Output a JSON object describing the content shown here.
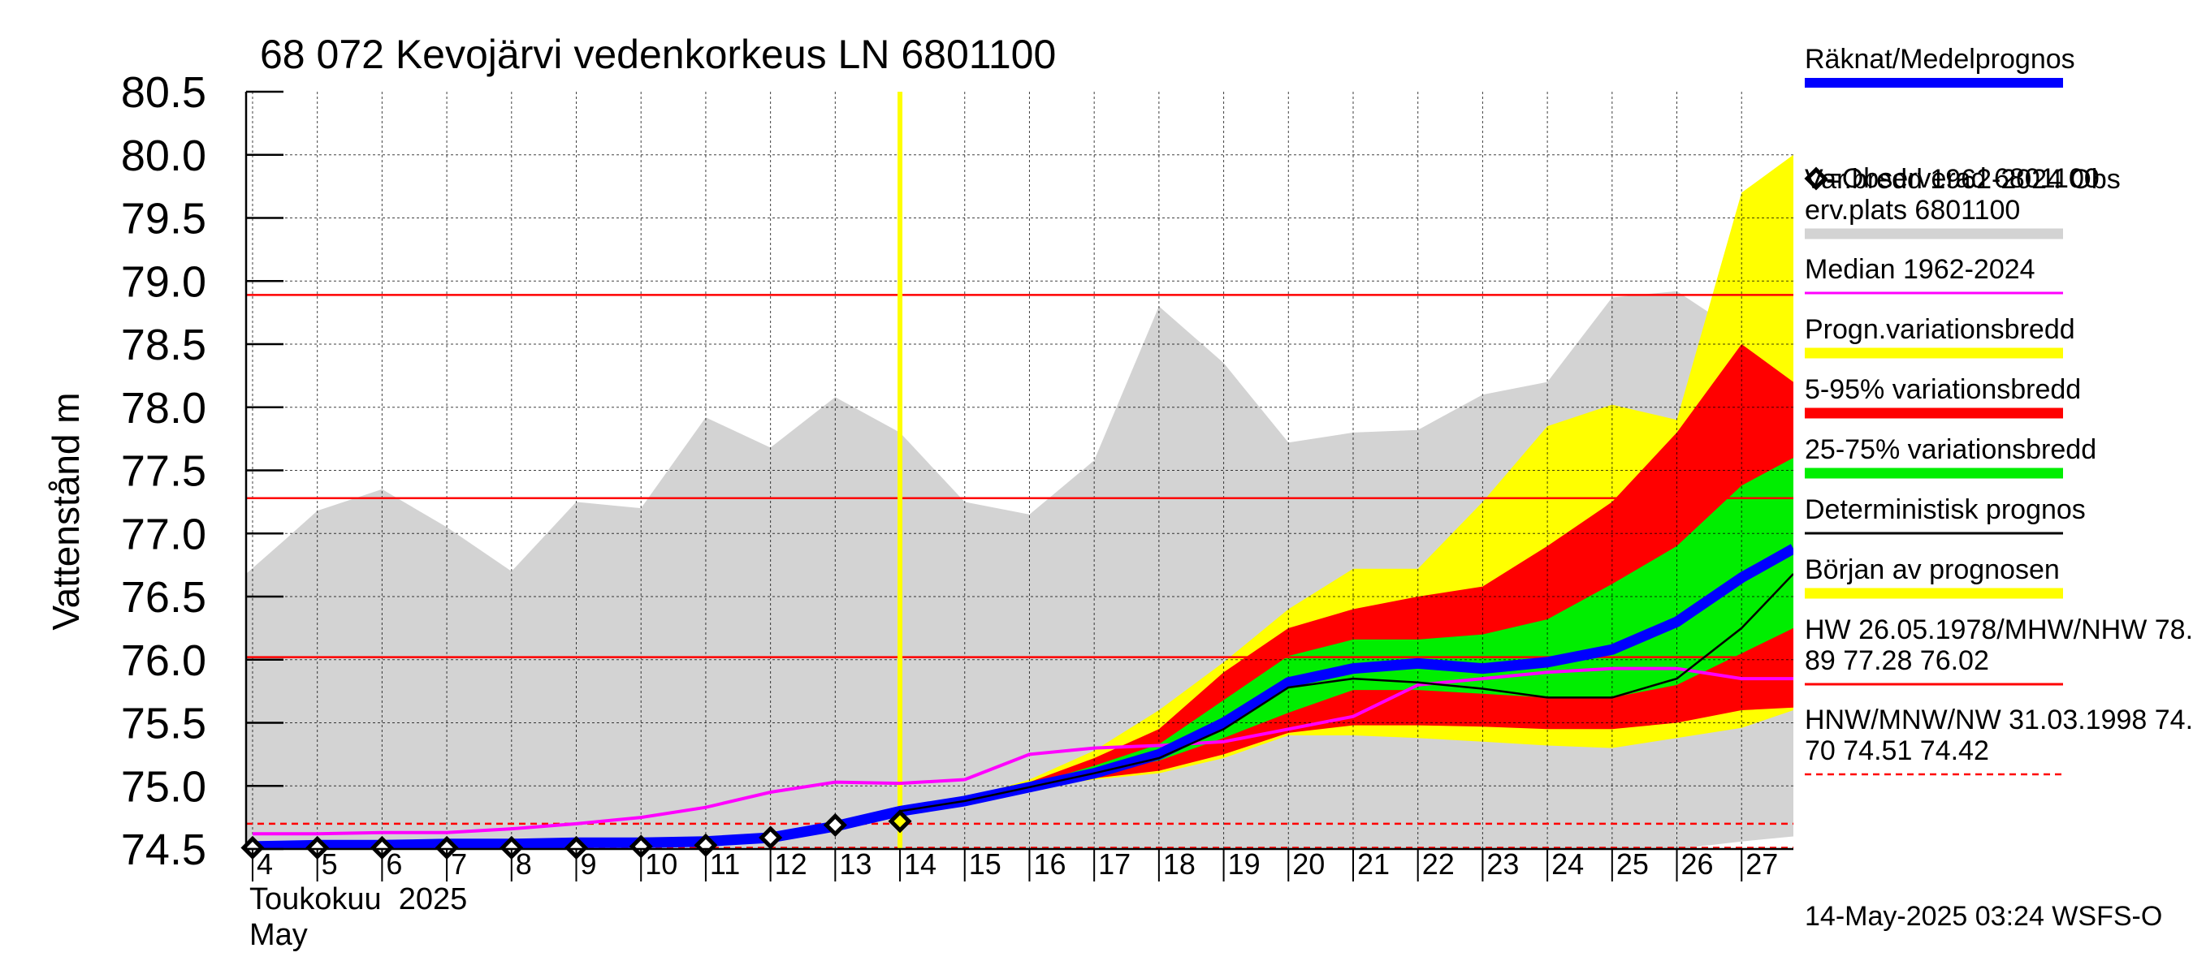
{
  "title": "68 072 Kevojärvi vedenkorkeus LN 6801100",
  "timestamp": "14-May-2025 03:24 WSFS-O",
  "chart_data": {
    "type": "area",
    "title": "68 072 Kevojärvi vedenkorkeus LN 6801100",
    "ylabel": "Vattenstånd m",
    "xlabel_line1": "Toukokuu  2025",
    "xlabel_line2": "May",
    "ylim": [
      74.5,
      80.5
    ],
    "yticks": [
      "74.5",
      "75.0",
      "75.5",
      "76.0",
      "76.5",
      "77.0",
      "77.5",
      "78.0",
      "78.5",
      "79.0",
      "79.5",
      "80.0",
      "80.5"
    ],
    "xlim": [
      3.9,
      27.8
    ],
    "xticks": [
      "4",
      "5",
      "6",
      "7",
      "8",
      "9",
      "10",
      "11",
      "12",
      "13",
      "14",
      "15",
      "16",
      "17",
      "18",
      "19",
      "20",
      "21",
      "22",
      "23",
      "24",
      "25",
      "26",
      "27"
    ],
    "grid": true,
    "forecast_start_day": 14,
    "hlines": [
      {
        "name": "HW 26.05.1978",
        "value": 78.89,
        "color": "#ff0000",
        "style": "solid"
      },
      {
        "name": "MHW",
        "value": 77.28,
        "color": "#ff0000",
        "style": "solid"
      },
      {
        "name": "NHW",
        "value": 76.02,
        "color": "#ff0000",
        "style": "solid"
      },
      {
        "name": "HNW",
        "value": 74.7,
        "color": "#ff0000",
        "style": "dashed"
      },
      {
        "name": "MNW",
        "value": 74.51,
        "color": "#ff0000",
        "style": "dashed"
      }
    ],
    "historical_range": {
      "name": "Var.bredd 1962-2024 Obs erv.plats 6801100",
      "color": "#d3d3d3",
      "x": [
        3.9,
        4.5,
        5,
        6,
        7,
        8,
        9,
        10,
        11,
        12,
        13,
        14,
        15,
        16,
        17,
        18,
        19,
        20,
        21,
        22,
        23,
        24,
        25,
        26,
        27,
        27.8
      ],
      "upper": [
        76.68,
        76.95,
        77.18,
        77.35,
        77.05,
        76.7,
        77.25,
        77.2,
        77.92,
        77.68,
        78.08,
        77.8,
        77.25,
        77.15,
        77.58,
        78.8,
        78.35,
        77.72,
        77.8,
        77.82,
        78.1,
        78.2,
        78.87,
        78.92,
        78.58,
        78.52
      ],
      "lower": [
        74.48,
        74.48,
        74.48,
        74.48,
        74.48,
        74.48,
        74.48,
        74.48,
        74.48,
        74.48,
        74.48,
        74.48,
        74.48,
        74.48,
        74.48,
        74.47,
        74.46,
        74.46,
        74.46,
        74.46,
        74.46,
        74.46,
        74.46,
        74.5,
        74.56,
        74.6
      ]
    },
    "forecast_band_x": [
      14,
      15,
      16,
      17,
      18,
      19,
      20,
      21,
      22,
      23,
      24,
      25,
      26,
      27,
      27.8
    ],
    "prognosis_range": {
      "name": "Progn.variationsbredd",
      "color": "#ffff00",
      "upper": [
        74.8,
        74.9,
        75.05,
        75.28,
        75.6,
        75.98,
        76.4,
        76.72,
        76.72,
        77.25,
        77.85,
        78.02,
        77.9,
        79.7,
        80.0
      ],
      "lower": [
        74.8,
        74.88,
        74.98,
        75.05,
        75.1,
        75.22,
        75.4,
        75.4,
        75.38,
        75.35,
        75.32,
        75.3,
        75.38,
        75.46,
        75.6
      ]
    },
    "range_5_95": {
      "name": "5-95% variationsbredd",
      "color": "#ff0000",
      "upper": [
        74.8,
        74.9,
        75.03,
        75.22,
        75.45,
        75.9,
        76.25,
        76.4,
        76.5,
        76.58,
        76.9,
        77.25,
        77.8,
        78.5,
        78.2
      ],
      "lower": [
        74.8,
        74.88,
        74.99,
        75.06,
        75.12,
        75.25,
        75.42,
        75.48,
        75.48,
        75.47,
        75.45,
        75.45,
        75.5,
        75.6,
        75.62
      ]
    },
    "range_25_75": {
      "name": "25-75% variationsbredd",
      "color": "#00ee00",
      "upper": [
        74.8,
        74.89,
        75.01,
        75.16,
        75.33,
        75.68,
        76.03,
        76.16,
        76.16,
        76.2,
        76.32,
        76.6,
        76.9,
        77.38,
        77.6
      ],
      "lower": [
        74.8,
        74.89,
        75.0,
        75.1,
        75.2,
        75.38,
        75.58,
        75.76,
        75.76,
        75.73,
        75.7,
        75.7,
        75.8,
        76.05,
        76.25
      ]
    },
    "series": [
      {
        "name": "Räknat/Medelprognos",
        "color": "#0000ff",
        "x": [
          4,
          5,
          6,
          7,
          8,
          9,
          10,
          11,
          12,
          13,
          14,
          15,
          16,
          17,
          18,
          19,
          20,
          21,
          22,
          23,
          24,
          25,
          26,
          27,
          27.8
        ],
        "y": [
          74.52,
          74.53,
          74.53,
          74.54,
          74.54,
          74.55,
          74.55,
          74.56,
          74.59,
          74.68,
          74.8,
          74.88,
          74.99,
          75.1,
          75.25,
          75.5,
          75.82,
          75.93,
          75.97,
          75.93,
          75.98,
          76.08,
          76.3,
          76.65,
          76.88
        ]
      },
      {
        "name": "Median 1962-2024",
        "color": "#ff00ff",
        "x": [
          4,
          5,
          6,
          7,
          8,
          9,
          10,
          11,
          12,
          13,
          14,
          15,
          16,
          17,
          18,
          19,
          20,
          21,
          22,
          23,
          24,
          25,
          26,
          27,
          27.8
        ],
        "y": [
          74.62,
          74.62,
          74.63,
          74.63,
          74.66,
          74.7,
          74.75,
          74.83,
          74.95,
          75.03,
          75.02,
          75.05,
          75.25,
          75.3,
          75.32,
          75.35,
          75.45,
          75.55,
          75.8,
          75.85,
          75.9,
          75.93,
          75.93,
          75.85,
          75.85
        ]
      },
      {
        "name": "Deterministisk prognos",
        "color": "#000000",
        "x": [
          14,
          15,
          16,
          17,
          18,
          19,
          20,
          21,
          22,
          23,
          24,
          25,
          26,
          27,
          27.8
        ],
        "y": [
          74.8,
          74.88,
          74.99,
          75.1,
          75.22,
          75.45,
          75.78,
          75.85,
          75.82,
          75.77,
          75.7,
          75.7,
          75.85,
          76.25,
          76.68
        ]
      }
    ],
    "observed": {
      "name": "=Observerad 6801100",
      "x": [
        4,
        5,
        6,
        7,
        8,
        9,
        10,
        11,
        12,
        13,
        14
      ],
      "y": [
        74.51,
        74.51,
        74.51,
        74.51,
        74.51,
        74.51,
        74.52,
        74.53,
        74.59,
        74.69,
        74.72
      ]
    }
  },
  "legend": [
    {
      "label": "Räknat/Medelprognos",
      "color": "#0000ff",
      "kind": "thick-line"
    },
    {
      "label": "=Observerad 6801100",
      "color": "#000000",
      "kind": "diamond"
    },
    {
      "label": "Var.bredd 1962-2024   Obs",
      "label2": "erv.plats 6801100",
      "color": "#d3d3d3",
      "kind": "band"
    },
    {
      "label": "Median 1962-2024",
      "color": "#ff00ff",
      "kind": "line"
    },
    {
      "label": "Progn.variationsbredd",
      "color": "#ffff00",
      "kind": "band"
    },
    {
      "label": "5-95% variationsbredd",
      "color": "#ff0000",
      "kind": "band"
    },
    {
      "label": "25-75% variationsbredd",
      "color": "#00ee00",
      "kind": "band"
    },
    {
      "label": "Deterministisk prognos",
      "color": "#000000",
      "kind": "line"
    },
    {
      "label": "Början av prognosen",
      "color": "#ffff00",
      "kind": "band"
    },
    {
      "label": "HW 26.05.1978/MHW/NHW 78.",
      "label2": "89 77.28 76.02",
      "color": "#ff0000",
      "kind": "line"
    },
    {
      "label": "HNW/MNW/NW 31.03.1998 74.",
      "label2": "70 74.51 74.42",
      "color": "#ff0000",
      "kind": "dashed"
    }
  ]
}
